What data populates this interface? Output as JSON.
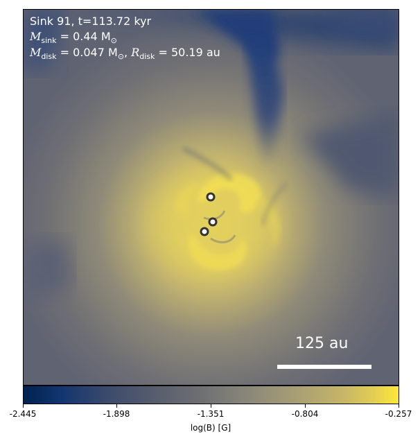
{
  "header": {
    "line1": "Sink 91, t=113.72 kyr",
    "msink_label": "M",
    "msink_sub": "sink",
    "msink_value": " = 0.44 M",
    "msink_unit_sub": "⊙",
    "mdisk_label": "M",
    "mdisk_sub": "disk",
    "mdisk_value": " = 0.047 M",
    "mdisk_unit_sub": "⊙",
    "rdisk_sep": ", ",
    "rdisk_label": "R",
    "rdisk_sub": "disk",
    "rdisk_value": " = 50.19 au"
  },
  "scalebar": {
    "label": "125 au"
  },
  "colorbar": {
    "label": "log(B) [G]",
    "ticks": [
      "-2.445",
      "-1.898",
      "-1.351",
      "-0.804",
      "-0.257"
    ],
    "colormap": "cividis"
  },
  "sinks": [
    {
      "name": "sink-1"
    },
    {
      "name": "sink-2"
    },
    {
      "name": "sink-3"
    }
  ]
}
